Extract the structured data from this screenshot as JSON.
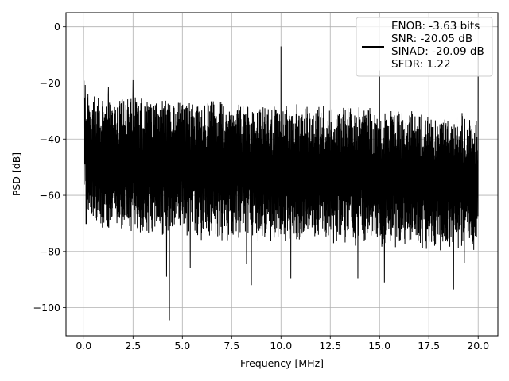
{
  "chart_data": {
    "type": "line",
    "title": "",
    "xlabel": "Frequency [MHz]",
    "ylabel": "PSD [dB]",
    "xlim": [
      -0.9,
      21.0
    ],
    "ylim": [
      -110,
      5
    ],
    "grid": true,
    "legend_position": "top-right",
    "x_ticks": [
      0.0,
      2.5,
      5.0,
      7.5,
      10.0,
      12.5,
      15.0,
      17.5,
      20.0
    ],
    "x_tick_labels": [
      "0.0",
      "2.5",
      "5.0",
      "7.5",
      "10.0",
      "12.5",
      "15.0",
      "17.5",
      "20.0"
    ],
    "y_ticks": [
      0,
      -20,
      -40,
      -60,
      -80,
      -100
    ],
    "y_tick_labels": [
      "0",
      "−20",
      "−40",
      "−60",
      "−80",
      "−100"
    ],
    "series": [
      {
        "color": "#000000",
        "x_range": [
          0.0,
          20.0
        ],
        "noise_floor_upper_db": [
          -25,
          -32
        ],
        "noise_floor_lower_db": [
          -68,
          -75
        ],
        "spurs": [
          {
            "x": 0.0,
            "y": 0.0
          },
          {
            "x": 1.25,
            "y": -21.5
          },
          {
            "x": 2.5,
            "y": -19.0
          },
          {
            "x": 10.0,
            "y": -7.0
          },
          {
            "x": 15.0,
            "y": -15.5
          },
          {
            "x": 20.0,
            "y": -8.0
          }
        ],
        "dips": [
          {
            "x": 4.35,
            "y": -104.5
          },
          {
            "x": 4.2,
            "y": -89.0
          },
          {
            "x": 5.4,
            "y": -86.0
          },
          {
            "x": 8.5,
            "y": -92.0
          },
          {
            "x": 10.5,
            "y": -89.5
          },
          {
            "x": 13.9,
            "y": -89.5
          },
          {
            "x": 15.25,
            "y": -91.0
          },
          {
            "x": 18.75,
            "y": -93.5
          },
          {
            "x": 8.25,
            "y": -84.5
          },
          {
            "x": 19.3,
            "y": -84.0
          }
        ]
      }
    ],
    "legend": {
      "lines": [
        "ENOB: -3.63 bits",
        "SNR: -20.05 dB",
        "SINAD: -20.09 dB",
        "SFDR: 1.22"
      ]
    }
  }
}
